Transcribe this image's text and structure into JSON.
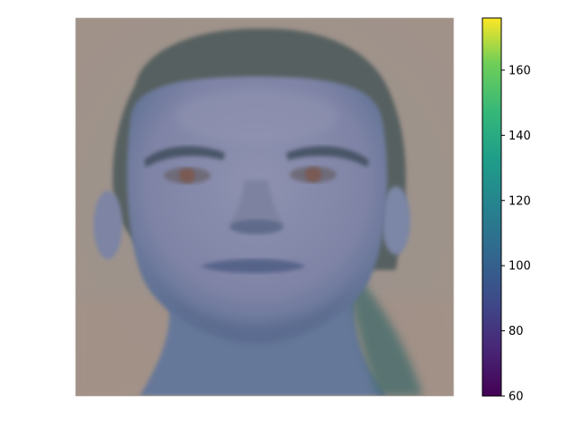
{
  "chart_data": {
    "type": "heatmap",
    "title": "",
    "xlabel": "",
    "ylabel": "",
    "image_content": "face-photo",
    "axes_visible": false,
    "colorbar": {
      "colormap": "viridis",
      "vmin": 60,
      "vmax": 176,
      "ticks": [
        60,
        80,
        100,
        120,
        140,
        160
      ],
      "tick_labels": [
        "60",
        "80",
        "100",
        "120",
        "140",
        "160"
      ],
      "stops": [
        {
          "value": 0.0,
          "color": "#440154"
        },
        {
          "value": 0.13,
          "color": "#482878"
        },
        {
          "value": 0.25,
          "color": "#3e4a89"
        },
        {
          "value": 0.38,
          "color": "#31688e"
        },
        {
          "value": 0.5,
          "color": "#26828e"
        },
        {
          "value": 0.63,
          "color": "#1f9e89"
        },
        {
          "value": 0.75,
          "color": "#35b779"
        },
        {
          "value": 0.88,
          "color": "#6ece58"
        },
        {
          "value": 1.0,
          "color": "#fde725"
        }
      ]
    },
    "colors": {
      "background": "#9b9590",
      "hair": "#57605f",
      "skin": "#8a8cac",
      "skin_shadow": "#5a6c92",
      "neck": "#6a7a9c",
      "eyes": "#7a5a52",
      "lips": "#5a668c"
    }
  }
}
